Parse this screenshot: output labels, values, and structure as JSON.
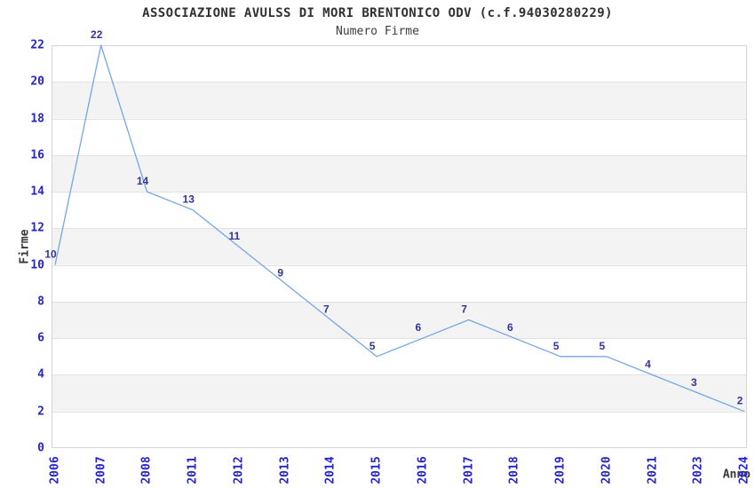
{
  "chart_data": {
    "type": "line",
    "title": "ASSOCIAZIONE AVULSS DI MORI BRENTONICO ODV (c.f.94030280229)",
    "subtitle": "Numero Firme",
    "xlabel": "Anno",
    "ylabel": "Firme",
    "categories": [
      "2006",
      "2007",
      "2008",
      "2011",
      "2012",
      "2013",
      "2014",
      "2015",
      "2016",
      "2017",
      "2018",
      "2019",
      "2020",
      "2021",
      "2023",
      "2024"
    ],
    "values": [
      10,
      22,
      14,
      13,
      11,
      9,
      7,
      5,
      6,
      7,
      6,
      5,
      5,
      4,
      3,
      2
    ],
    "ylim": [
      0,
      22
    ],
    "y_ticks": [
      0,
      2,
      4,
      6,
      8,
      10,
      12,
      14,
      16,
      18,
      20,
      22
    ],
    "stripe_bands": [
      [
        2,
        4
      ],
      [
        6,
        8
      ],
      [
        10,
        12
      ],
      [
        14,
        16
      ],
      [
        18,
        20
      ]
    ],
    "grid": "horizontal lines every 2 units with alternating gray stripe bands",
    "legend": "none",
    "x_tick_rotation_deg": 90,
    "point_labels_visible": true,
    "colors": {
      "line": "#75a6e6",
      "point_label": "#333399",
      "tick_label": "#2424cc",
      "axis_title": "#383838",
      "title_text": "#303030",
      "stripe_fill": "#f3f3f3",
      "grid_line": "#e2e2e2",
      "plot_border": "#d4d4d4",
      "background": "#ffffff"
    }
  }
}
